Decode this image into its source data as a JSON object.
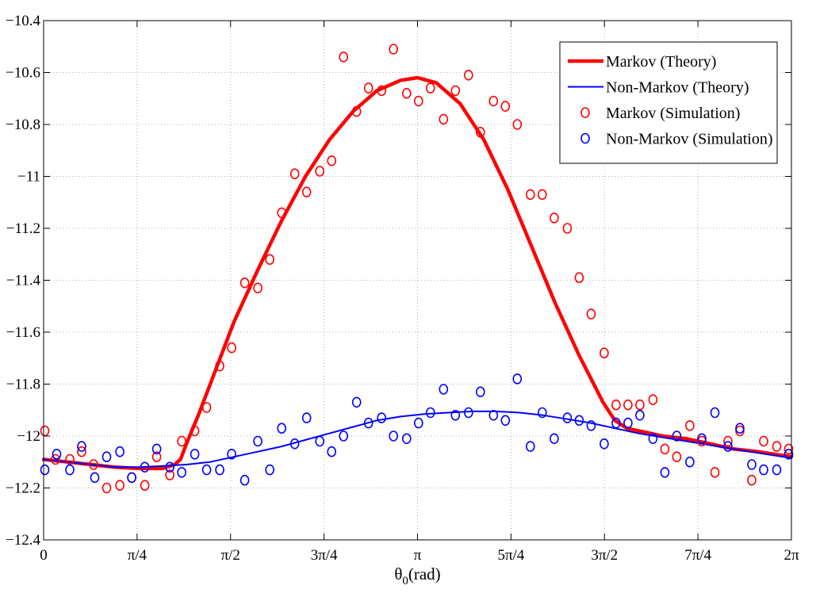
{
  "chart_data": {
    "type": "line",
    "title": "",
    "xlabel": "θ0(rad)",
    "xlabel_main": "θ",
    "xlabel_sub": "0",
    "xlabel_unit": "(rad)",
    "ylabel": "",
    "xlim": [
      0,
      6.2832
    ],
    "ylim": [
      -12.4,
      -10.4
    ],
    "grid": true,
    "legend_position": "top-right",
    "x_ticks": [
      {
        "value": 0,
        "label": "0"
      },
      {
        "value": 0.7854,
        "label": "π/4"
      },
      {
        "value": 1.5708,
        "label": "π/2"
      },
      {
        "value": 2.3562,
        "label": "3π/4"
      },
      {
        "value": 3.1416,
        "label": "π"
      },
      {
        "value": 3.927,
        "label": "5π/4"
      },
      {
        "value": 4.7124,
        "label": "3π/2"
      },
      {
        "value": 5.4978,
        "label": "7π/4"
      },
      {
        "value": 6.2832,
        "label": "2π"
      }
    ],
    "y_ticks": [
      {
        "value": -10.4,
        "label": "−10.4"
      },
      {
        "value": -10.6,
        "label": "−10.6"
      },
      {
        "value": -10.8,
        "label": "−10.8"
      },
      {
        "value": -11.0,
        "label": "−11"
      },
      {
        "value": -11.2,
        "label": "−11.2"
      },
      {
        "value": -11.4,
        "label": "−11.4"
      },
      {
        "value": -11.6,
        "label": "−11.6"
      },
      {
        "value": -11.8,
        "label": "−11.8"
      },
      {
        "value": -12.0,
        "label": "−12"
      },
      {
        "value": -12.2,
        "label": "−12.2"
      },
      {
        "value": -12.4,
        "label": "−12.4"
      }
    ],
    "series": [
      {
        "name": "Markov (Theory)",
        "style": "line",
        "color": "#ff0000",
        "width": 4.5,
        "x": [
          0,
          0.2,
          0.4,
          0.6,
          0.8,
          1.0,
          1.1,
          1.15,
          1.2,
          1.3,
          1.4,
          1.6,
          1.8,
          2.0,
          2.2,
          2.4,
          2.6,
          2.8,
          3.0,
          3.1416,
          3.3,
          3.5,
          3.7,
          3.9,
          4.1,
          4.3,
          4.5,
          4.7,
          4.8,
          4.9,
          5.0,
          5.2,
          5.4,
          5.6,
          5.8,
          6.0,
          6.2832
        ],
        "y": [
          -12.09,
          -12.1,
          -12.11,
          -12.12,
          -12.125,
          -12.125,
          -12.11,
          -12.09,
          -12.03,
          -11.92,
          -11.8,
          -11.56,
          -11.36,
          -11.17,
          -11.0,
          -10.86,
          -10.75,
          -10.67,
          -10.63,
          -10.62,
          -10.64,
          -10.72,
          -10.86,
          -11.05,
          -11.27,
          -11.49,
          -11.69,
          -11.87,
          -11.94,
          -11.97,
          -11.98,
          -12.0,
          -12.01,
          -12.03,
          -12.05,
          -12.06,
          -12.08
        ]
      },
      {
        "name": "Non-Markov (Theory)",
        "style": "line",
        "color": "#0000ff",
        "width": 2,
        "x": [
          0,
          0.2,
          0.4,
          0.6,
          0.8,
          1.0,
          1.2,
          1.4,
          1.6,
          1.8,
          2.0,
          2.2,
          2.4,
          2.6,
          2.8,
          3.0,
          3.2,
          3.4,
          3.6,
          3.8,
          4.0,
          4.2,
          4.4,
          4.6,
          4.8,
          5.0,
          5.2,
          5.4,
          5.6,
          5.8,
          6.0,
          6.2832
        ],
        "y": [
          -12.09,
          -12.1,
          -12.11,
          -12.12,
          -12.12,
          -12.115,
          -12.11,
          -12.1,
          -12.08,
          -12.06,
          -12.04,
          -12.015,
          -11.99,
          -11.965,
          -11.94,
          -11.925,
          -11.915,
          -11.91,
          -11.905,
          -11.905,
          -11.91,
          -11.92,
          -11.935,
          -11.95,
          -11.97,
          -11.99,
          -12.005,
          -12.02,
          -12.035,
          -12.05,
          -12.065,
          -12.085
        ]
      },
      {
        "name": "Markov (Simulation)",
        "style": "marker",
        "color": "#ff0000",
        "x": [
          0.01,
          0.1,
          0.22,
          0.32,
          0.42,
          0.53,
          0.64,
          0.74,
          0.85,
          0.95,
          1.06,
          1.16,
          1.27,
          1.37,
          1.48,
          1.58,
          1.69,
          1.8,
          1.9,
          2.0,
          2.11,
          2.21,
          2.32,
          2.42,
          2.52,
          2.63,
          2.73,
          2.84,
          2.94,
          3.05,
          3.15,
          3.25,
          3.36,
          3.46,
          3.57,
          3.67,
          3.78,
          3.88,
          3.98,
          4.09,
          4.19,
          4.29,
          4.4,
          4.5,
          4.6,
          4.71,
          4.81,
          4.91,
          5.01,
          5.12,
          5.22,
          5.32,
          5.43,
          5.53,
          5.64,
          5.75,
          5.85,
          5.95,
          6.05,
          6.16,
          6.26
        ],
        "y": [
          -11.98,
          -12.09,
          -12.09,
          -12.06,
          -12.11,
          -12.2,
          -12.19,
          -12.16,
          -12.19,
          -12.08,
          -12.15,
          -12.02,
          -11.98,
          -11.89,
          -11.73,
          -11.66,
          -11.41,
          -11.43,
          -11.32,
          -11.14,
          -10.99,
          -11.06,
          -10.98,
          -10.94,
          -10.54,
          -10.75,
          -10.66,
          -10.67,
          -10.51,
          -10.68,
          -10.71,
          -10.66,
          -10.78,
          -10.67,
          -10.61,
          -10.83,
          -10.71,
          -10.73,
          -10.8,
          -11.07,
          -11.07,
          -11.16,
          -11.2,
          -11.39,
          -11.53,
          -11.68,
          -11.88,
          -11.88,
          -11.88,
          -11.86,
          -12.05,
          -12.08,
          -11.96,
          -12.02,
          -12.14,
          -12.02,
          -11.98,
          -12.17,
          -12.02,
          -12.04,
          -12.05
        ]
      },
      {
        "name": "Non-Markov (Simulation)",
        "style": "marker",
        "color": "#0000ff",
        "x": [
          0.01,
          0.11,
          0.22,
          0.32,
          0.43,
          0.53,
          0.64,
          0.74,
          0.85,
          0.95,
          1.06,
          1.16,
          1.27,
          1.37,
          1.48,
          1.58,
          1.69,
          1.8,
          1.9,
          2.0,
          2.11,
          2.21,
          2.32,
          2.42,
          2.52,
          2.63,
          2.73,
          2.84,
          2.94,
          3.05,
          3.15,
          3.25,
          3.36,
          3.46,
          3.57,
          3.67,
          3.78,
          3.88,
          3.98,
          4.09,
          4.19,
          4.29,
          4.4,
          4.5,
          4.6,
          4.71,
          4.81,
          4.91,
          5.01,
          5.12,
          5.22,
          5.32,
          5.43,
          5.53,
          5.64,
          5.75,
          5.85,
          5.95,
          6.05,
          6.16,
          6.26
        ],
        "y": [
          -12.13,
          -12.07,
          -12.13,
          -12.04,
          -12.16,
          -12.08,
          -12.06,
          -12.16,
          -12.12,
          -12.05,
          -12.12,
          -12.14,
          -12.07,
          -12.13,
          -12.13,
          -12.07,
          -12.17,
          -12.02,
          -12.13,
          -11.97,
          -12.03,
          -11.93,
          -12.02,
          -12.06,
          -12.0,
          -11.87,
          -11.95,
          -11.93,
          -12.0,
          -12.01,
          -11.95,
          -11.91,
          -11.82,
          -11.92,
          -11.91,
          -11.83,
          -11.92,
          -11.94,
          -11.78,
          -12.04,
          -11.91,
          -12.01,
          -11.93,
          -11.94,
          -11.96,
          -12.03,
          -11.95,
          -11.95,
          -11.92,
          -12.01,
          -12.14,
          -12.0,
          -12.1,
          -12.01,
          -11.91,
          -12.04,
          -11.97,
          -12.11,
          -12.13,
          -12.13,
          -12.07
        ]
      }
    ]
  }
}
